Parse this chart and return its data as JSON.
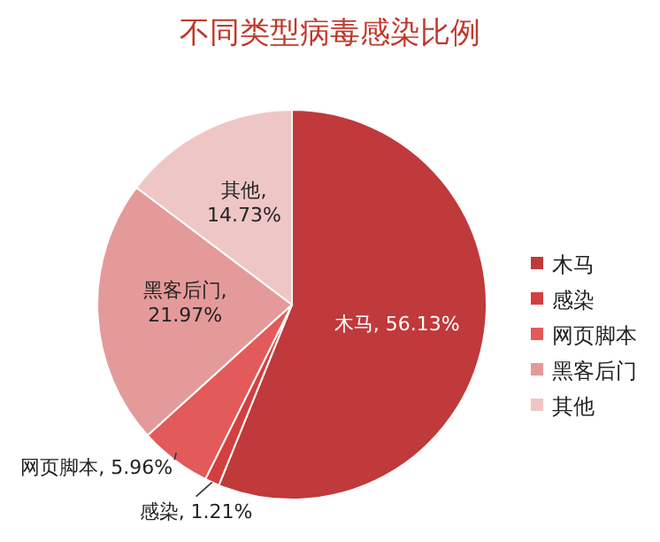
{
  "chart_data": {
    "type": "pie",
    "title": "不同类型病毒感染比例",
    "categories": [
      "木马",
      "感染",
      "网页脚本",
      "黑客后门",
      "其他"
    ],
    "values": [
      56.13,
      1.21,
      5.96,
      21.97,
      14.73
    ],
    "value_labels": [
      "木马, 56.13%",
      "感染, 1.21%",
      "网页脚本, 5.96%",
      "黑客后门, 21.97%",
      "其他, 14.73%"
    ],
    "colors": [
      "#c0393b",
      "#d33f3f",
      "#e25a5a",
      "#e59a9a",
      "#efc6c6"
    ],
    "legend": "right"
  }
}
